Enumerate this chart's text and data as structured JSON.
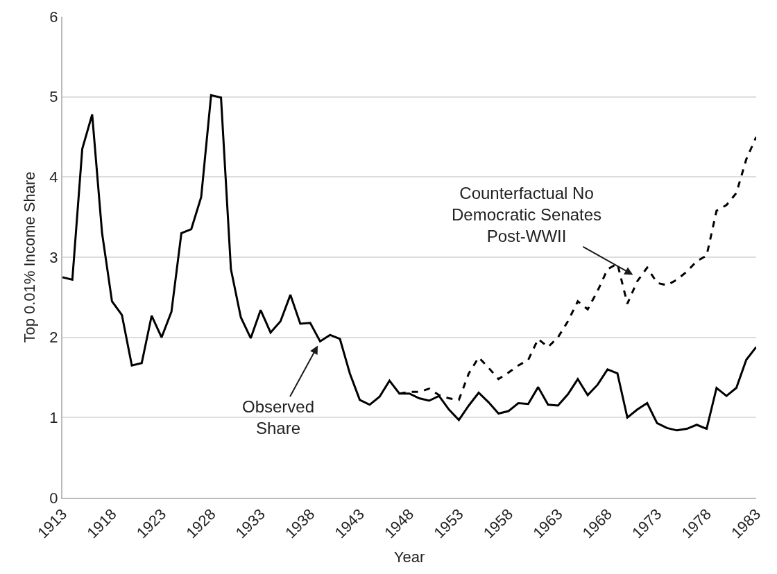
{
  "chart_data": {
    "type": "line",
    "xlabel": "Year",
    "ylabel": "Top 0.01% Income Share",
    "xlim": [
      1913,
      1983
    ],
    "xticks": [
      1913,
      1918,
      1923,
      1928,
      1933,
      1938,
      1943,
      1948,
      1953,
      1958,
      1963,
      1968,
      1973,
      1978,
      1983
    ],
    "ylim": [
      0,
      6
    ],
    "yticks": [
      0,
      1,
      2,
      3,
      4,
      5,
      6
    ],
    "grid": "y",
    "marker": "none",
    "series": [
      {
        "color": "#000000",
        "line_style": "solid",
        "x": [
          1913,
          1914,
          1915,
          1916,
          1917,
          1918,
          1919,
          1920,
          1921,
          1922,
          1923,
          1924,
          1925,
          1926,
          1927,
          1928,
          1929,
          1930,
          1931,
          1932,
          1933,
          1934,
          1935,
          1936,
          1937,
          1938,
          1939,
          1940,
          1941,
          1942,
          1943,
          1944,
          1945,
          1946,
          1947,
          1948,
          1949,
          1950,
          1951,
          1952,
          1953,
          1954,
          1955,
          1956,
          1957,
          1958,
          1959,
          1960,
          1961,
          1962,
          1963,
          1964,
          1965,
          1966,
          1967,
          1968,
          1969,
          1970,
          1971,
          1972,
          1973,
          1974,
          1975,
          1976,
          1977,
          1978,
          1979,
          1980,
          1981,
          1982,
          1983
        ],
        "values": [
          2.75,
          2.72,
          4.35,
          4.78,
          3.3,
          2.45,
          2.28,
          1.65,
          1.68,
          2.27,
          2.0,
          2.32,
          3.3,
          3.35,
          3.75,
          5.02,
          4.99,
          2.85,
          2.25,
          1.99,
          2.34,
          2.06,
          2.2,
          2.53,
          2.17,
          2.18,
          1.95,
          2.03,
          1.98,
          1.55,
          1.22,
          1.16,
          1.26,
          1.46,
          1.3,
          1.3,
          1.24,
          1.21,
          1.27,
          1.1,
          0.97,
          1.15,
          1.31,
          1.19,
          1.05,
          1.08,
          1.18,
          1.17,
          1.38,
          1.16,
          1.15,
          1.29,
          1.48,
          1.28,
          1.41,
          1.6,
          1.55,
          1.0,
          1.1,
          1.18,
          0.93,
          0.87,
          0.84,
          0.86,
          0.91,
          0.86,
          1.37,
          1.27,
          1.37,
          1.72,
          1.88
        ]
      },
      {
        "color": "#000000",
        "line_style": "dashed",
        "x": [
          1947,
          1948,
          1949,
          1950,
          1951,
          1952,
          1953,
          1954,
          1955,
          1956,
          1957,
          1958,
          1959,
          1960,
          1961,
          1962,
          1963,
          1964,
          1965,
          1966,
          1967,
          1968,
          1969,
          1970,
          1971,
          1972,
          1973,
          1974,
          1975,
          1976,
          1977,
          1978,
          1979,
          1980,
          1981,
          1982,
          1983
        ],
        "values": [
          1.3,
          1.32,
          1.32,
          1.36,
          1.28,
          1.24,
          1.22,
          1.55,
          1.75,
          1.62,
          1.48,
          1.56,
          1.65,
          1.72,
          1.98,
          1.88,
          2.0,
          2.2,
          2.45,
          2.35,
          2.58,
          2.85,
          2.92,
          2.42,
          2.7,
          2.87,
          2.68,
          2.65,
          2.72,
          2.82,
          2.95,
          3.02,
          3.58,
          3.65,
          3.8,
          4.22,
          4.5
        ]
      }
    ],
    "annotations": [
      {
        "text": "Observed\nShare",
        "x": 1939,
        "y": 1.95
      },
      {
        "text": "Counterfactual No\nDemocratic Senates\nPost-WWII",
        "x": 1971,
        "y": 2.75
      }
    ]
  }
}
